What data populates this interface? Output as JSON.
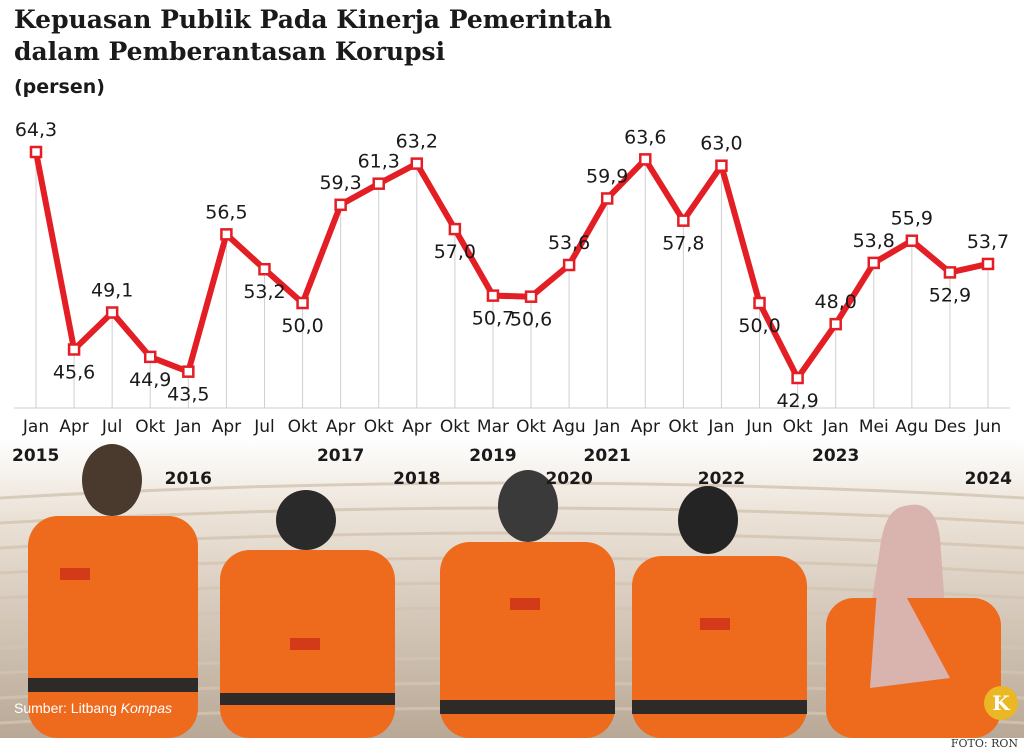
{
  "title_line1": "Kepuasan Publik Pada Kinerja Pemerintah",
  "title_line2": "dalam Pemberantasan Korupsi",
  "unit": "(persen)",
  "source_prefix": "Sumber: Litbang ",
  "source_name": "Kompas",
  "photo_credit": "FOTO: RON",
  "logo_letter": "K",
  "colors": {
    "line": "#e31e24",
    "grid": "#cfcfcf",
    "text": "#1a1a1a"
  },
  "chart_data": {
    "type": "line",
    "title": "Kepuasan Publik Pada Kinerja Pemerintah dalam Pemberantasan Korupsi",
    "ylabel": "(persen)",
    "months": [
      "Jan",
      "Apr",
      "Jul",
      "Okt",
      "Jan",
      "Apr",
      "Jul",
      "Okt",
      "Apr",
      "Okt",
      "Apr",
      "Okt",
      "Mar",
      "Okt",
      "Agu",
      "Jan",
      "Apr",
      "Okt",
      "Jan",
      "Jun",
      "Okt",
      "Jan",
      "Mei",
      "Agu",
      "Des",
      "Jun"
    ],
    "values": [
      64.3,
      45.6,
      49.1,
      44.9,
      43.5,
      56.5,
      53.2,
      50.0,
      59.3,
      61.3,
      63.2,
      57.0,
      50.7,
      50.6,
      53.6,
      59.9,
      63.6,
      57.8,
      63.0,
      50.0,
      42.9,
      48.0,
      53.8,
      55.9,
      52.9,
      53.7
    ],
    "value_labels": [
      "64,3",
      "45,6",
      "49,1",
      "44,9",
      "43,5",
      "56,5",
      "53,2",
      "50,0",
      "59,3",
      "61,3",
      "63,2",
      "57,0",
      "50,7",
      "50,6",
      "53,6",
      "59,9",
      "63,6",
      "57,8",
      "63,0",
      "50,0",
      "42,9",
      "48,0",
      "53,8",
      "55,9",
      "52,9",
      "53,7"
    ],
    "years": [
      {
        "label": "2015",
        "index": 0
      },
      {
        "label": "2016",
        "index": 4
      },
      {
        "label": "2017",
        "index": 8
      },
      {
        "label": "2018",
        "index": 10
      },
      {
        "label": "2019",
        "index": 12
      },
      {
        "label": "2020",
        "index": 14
      },
      {
        "label": "2021",
        "index": 15
      },
      {
        "label": "2022",
        "index": 18
      },
      {
        "label": "2023",
        "index": 21
      },
      {
        "label": "2024",
        "index": 25
      }
    ],
    "legend": "none",
    "grid": "vertical"
  }
}
